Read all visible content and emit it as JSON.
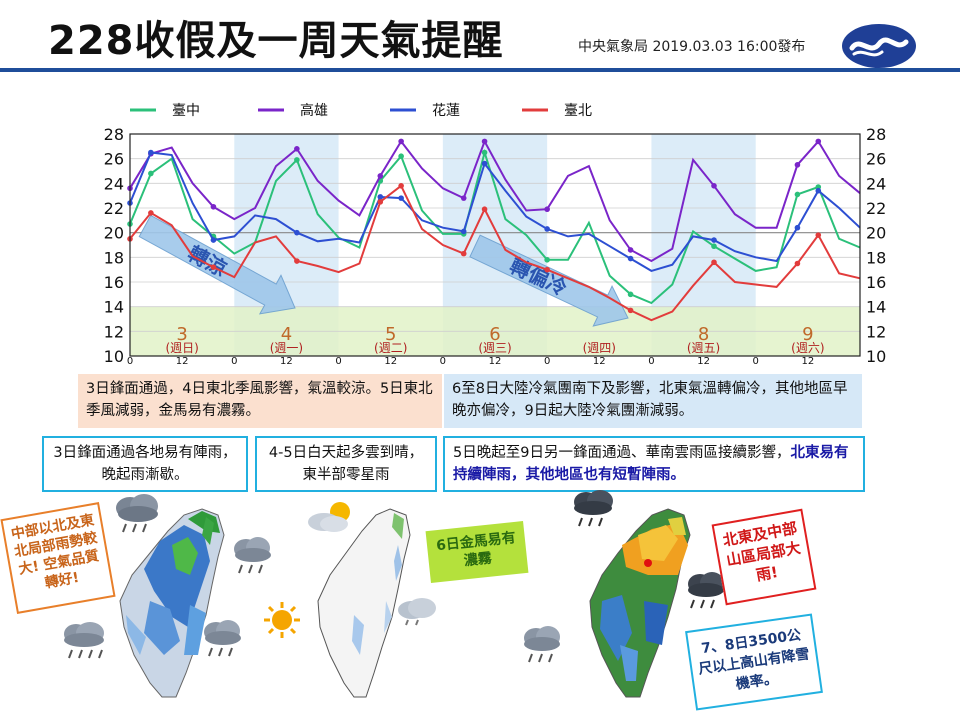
{
  "header": {
    "title": "228收假及一周天氣提醒",
    "issuer": "中央氣象局 2019.03.03 16:00發布"
  },
  "chart_data": {
    "type": "line",
    "series": [
      {
        "name": "臺中",
        "color": "#2bc07a",
        "values": [
          20.7,
          24.8,
          26.0,
          21.1,
          19.7,
          18.3,
          19.2,
          24.2,
          25.9,
          21.5,
          19.6,
          18.8,
          24.2,
          26.2,
          21.8,
          19.9,
          19.9,
          26.5,
          21.1,
          19.8,
          17.8,
          17.8,
          20.8,
          16.5,
          15.0,
          14.3,
          15.8,
          20.1,
          18.9,
          17.9,
          16.9,
          17.2,
          23.1,
          23.7,
          19.5,
          18.8
        ]
      },
      {
        "name": "高雄",
        "color": "#7a25c9",
        "values": [
          23.6,
          26.4,
          26.9,
          24.0,
          22.1,
          21.1,
          22.0,
          25.4,
          26.8,
          24.2,
          22.6,
          21.4,
          24.6,
          27.4,
          25.2,
          23.6,
          22.8,
          27.4,
          24.3,
          21.8,
          21.9,
          24.6,
          25.4,
          21.0,
          18.6,
          17.7,
          18.7,
          25.9,
          23.8,
          21.5,
          20.4,
          20.4,
          25.5,
          27.4,
          24.6,
          23.2
        ]
      },
      {
        "name": "花蓮",
        "color": "#2d4fd2",
        "values": [
          22.4,
          26.5,
          26.3,
          22.4,
          19.4,
          19.7,
          21.4,
          21.1,
          20.0,
          19.3,
          19.5,
          19.2,
          22.9,
          22.8,
          21.0,
          20.4,
          20.1,
          25.6,
          23.4,
          21.3,
          20.3,
          19.7,
          19.9,
          18.9,
          17.9,
          16.9,
          17.4,
          19.7,
          19.4,
          18.5,
          18.0,
          17.7,
          20.4,
          23.4,
          22.0,
          20.4
        ]
      },
      {
        "name": "臺北",
        "color": "#e23c3c",
        "values": [
          19.5,
          21.6,
          20.6,
          18.1,
          17.2,
          16.4,
          19.2,
          19.7,
          17.7,
          17.3,
          16.8,
          17.5,
          22.5,
          23.8,
          20.3,
          19.0,
          18.3,
          21.9,
          18.6,
          17.6,
          17.0,
          16.3,
          15.6,
          14.7,
          13.7,
          12.9,
          13.6,
          15.7,
          17.6,
          16.0,
          15.8,
          15.6,
          17.5,
          19.8,
          16.7,
          16.3
        ]
      }
    ],
    "ylim": [
      10,
      28
    ],
    "yticks": [
      10,
      12,
      14,
      16,
      18,
      20,
      22,
      24,
      26,
      28
    ],
    "hour_ticks": [
      "0",
      "12",
      "0",
      "12",
      "0",
      "12",
      "0",
      "12",
      "0",
      "12",
      "0",
      "12",
      "0",
      "12"
    ],
    "days": [
      {
        "num": "3",
        "weekday": "(週日)"
      },
      {
        "num": "4",
        "weekday": "(週一)"
      },
      {
        "num": "5",
        "weekday": "(週二)"
      },
      {
        "num": "6",
        "weekday": "(週三)"
      },
      {
        "num": "",
        "weekday": "(週四)"
      },
      {
        "num": "8",
        "weekday": "(週五)"
      },
      {
        "num": "9",
        "weekday": "(週六)"
      }
    ],
    "arrows": [
      {
        "label": "轉涼"
      },
      {
        "label": "轉偏冷"
      }
    ]
  },
  "summaries": {
    "left": "3日鋒面通過，4日東北季風影響，氣溫較涼。5日東北季風減弱，金馬易有濃霧。",
    "right": "6至8日大陸冷氣團南下及影響，北東氣溫轉偏冷，其他地區早晚亦偏冷，9日起大陸冷氣團漸減弱。"
  },
  "panels": {
    "p1": "3日鋒面通過各地易有陣雨，晚起雨漸歇。",
    "p2": "4-5日白天起多雲到晴，東半部零星雨",
    "p3_plain": "5日晚起至9日另一鋒面通過、華南雲雨區接續影響，",
    "p3_highlight": "北東易有持續陣雨，其他地區也有短暫陣雨。"
  },
  "notes": {
    "aqi": "中部以北及東北局部雨勢較大! 空氣品質轉好!",
    "fog": "6日金馬易有濃霧",
    "heavy": "北東及中部山區局部大雨!",
    "snow": "7、8日3500公尺以上高山有降雪機率。"
  },
  "colors": {
    "header_rule": "#1f4e9a",
    "cyan_border": "#21b0e0",
    "orange_note": "#e87f2a",
    "red_note": "#e02020",
    "fog_note": "#b4e13c"
  },
  "icons": [
    "rain-cloud-icon",
    "sun-icon",
    "partly-cloudy-icon",
    "cwb-logo-icon"
  ]
}
